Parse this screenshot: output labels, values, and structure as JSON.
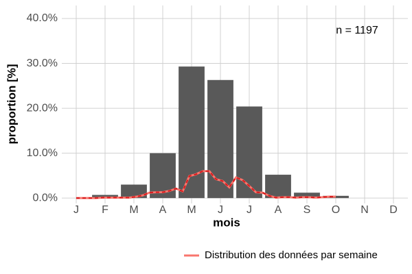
{
  "chart_data": {
    "type": "bar",
    "annotation": "n = 1197",
    "x_label": "mois",
    "y_label": "proportion [%]",
    "categories": [
      "J",
      "F",
      "M",
      "A",
      "M",
      "J",
      "J",
      "A",
      "S",
      "O",
      "N",
      "D"
    ],
    "values": [
      0,
      0.7,
      3.0,
      10.0,
      29.3,
      26.3,
      20.4,
      5.2,
      1.2,
      0.5,
      0,
      0
    ],
    "color": "#595959",
    "ylim": [
      -1.2,
      42.9
    ],
    "yticks": [
      {
        "value": 0,
        "label": "0.0%"
      },
      {
        "value": 10,
        "label": "10.0%"
      },
      {
        "value": 20,
        "label": "20.0%"
      },
      {
        "value": 30,
        "label": "30.0%"
      },
      {
        "value": 40,
        "label": "40.0%"
      }
    ],
    "grid": true,
    "line": {
      "name": "Distribution des données par semaine",
      "color": "#f8766d",
      "dash_color": "#d7191c",
      "values": [
        0,
        0,
        0,
        0,
        0.1,
        0.1,
        0.1,
        0.1,
        0.1,
        0.3,
        0.6,
        1.2,
        1.3,
        1.3,
        1.6,
        2.1,
        1.5,
        4.9,
        5.3,
        6.0,
        6.0,
        4.2,
        3.8,
        2.4,
        4.6,
        4.0,
        2.7,
        1.3,
        1.2,
        0.5,
        0.1,
        0.2,
        0.2,
        0.1,
        0.2,
        0.2,
        0.1,
        0.2,
        0.3,
        0.3
      ]
    },
    "legend": "bottom-right"
  }
}
